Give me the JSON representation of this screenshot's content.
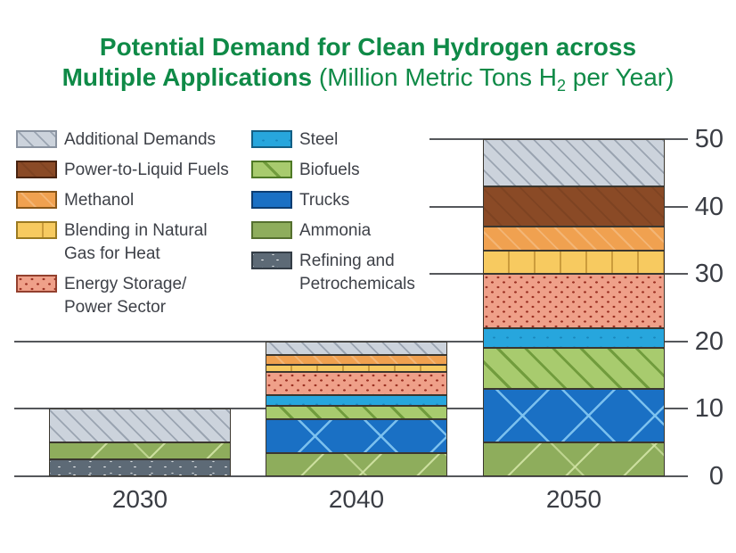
{
  "title": {
    "line1": "Potential Demand for Clean Hydrogen across",
    "line2_bold": "Multiple Applications",
    "line2_normal_prefix": " (Million Metric Tons H",
    "line2_subscript": "2",
    "line2_normal_suffix": " per Year)",
    "color": "#0f8a47"
  },
  "chart_data": {
    "type": "bar",
    "variant": "stacked",
    "title": "Potential Demand for Clean Hydrogen across Multiple Applications",
    "units": "Million Metric Tons H2 per Year",
    "categories": [
      "2030",
      "2040",
      "2050"
    ],
    "category_totals": [
      10,
      20,
      50
    ],
    "ylim": [
      0,
      50
    ],
    "yticks": [
      0,
      10,
      20,
      30,
      40,
      50
    ],
    "grid": "horizontal",
    "legend_position": "top-left",
    "series_bottom_to_top": [
      {
        "id": "refining",
        "name": "Refining and Petrochemicals",
        "color": "#5d6a76",
        "border": "#343d46",
        "pattern": "white-dots",
        "values": [
          2.5,
          0,
          0
        ]
      },
      {
        "id": "ammonia",
        "name": "Ammonia",
        "color": "#8ead5c",
        "border": "#55702f",
        "pattern": "sparse-diagonal",
        "values": [
          2.5,
          3.5,
          5
        ]
      },
      {
        "id": "trucks",
        "name": "Trucks",
        "color": "#1a70c4",
        "border": "#0c3d72",
        "pattern": "crosshatch",
        "values": [
          0,
          5,
          8
        ]
      },
      {
        "id": "biofuels",
        "name": "Biofuels",
        "color": "#a8cb6e",
        "border": "#4f7a26",
        "pattern": "diagonal",
        "values": [
          0,
          2,
          6
        ]
      },
      {
        "id": "steel",
        "name": "Steel",
        "color": "#27a6dd",
        "border": "#135f85",
        "pattern": "fine-dots",
        "values": [
          0,
          1.5,
          3
        ]
      },
      {
        "id": "storage",
        "name": "Energy Storage/Power Sector",
        "color": "#efa089",
        "border": "#93402e",
        "pattern": "dots",
        "values": [
          0,
          3.5,
          8
        ]
      },
      {
        "id": "blending",
        "name": "Blending in Natural Gas for Heat",
        "color": "#f7ca60",
        "border": "#9b7a22",
        "pattern": "vertical-dashes",
        "values": [
          0,
          1,
          3.5
        ]
      },
      {
        "id": "methanol",
        "name": "Methanol",
        "color": "#f0a150",
        "border": "#8a5718",
        "pattern": "solid",
        "values": [
          0,
          1.5,
          3.5
        ]
      },
      {
        "id": "ptl",
        "name": "Power-to-Liquid Fuels",
        "color": "#8a4a26",
        "border": "#472310",
        "pattern": "solid",
        "values": [
          0,
          0,
          6
        ]
      },
      {
        "id": "additional",
        "name": "Additional Demands",
        "color": "#ccd3dc",
        "border": "#8a93a0",
        "pattern": "diagonal-light",
        "values": [
          5,
          2,
          7
        ]
      }
    ]
  },
  "legend": {
    "col1": [
      {
        "id": "additional",
        "label": "Additional Demands"
      },
      {
        "id": "ptl",
        "label": "Power-to-Liquid Fuels"
      },
      {
        "id": "methanol",
        "label": "Methanol"
      },
      {
        "id": "blending",
        "label": "Blending in Natural\nGas for Heat"
      },
      {
        "id": "storage",
        "label": "Energy Storage/\nPower Sector"
      }
    ],
    "col2": [
      {
        "id": "steel",
        "label": "Steel"
      },
      {
        "id": "biofuels",
        "label": "Biofuels"
      },
      {
        "id": "trucks",
        "label": "Trucks"
      },
      {
        "id": "ammonia",
        "label": "Ammonia"
      },
      {
        "id": "refining",
        "label": "Refining and\nPetrochemicals"
      }
    ]
  },
  "axes": {
    "x_labels": [
      "2030",
      "2040",
      "2050"
    ],
    "y_labels": [
      "0",
      "10",
      "20",
      "30",
      "40",
      "50"
    ]
  }
}
